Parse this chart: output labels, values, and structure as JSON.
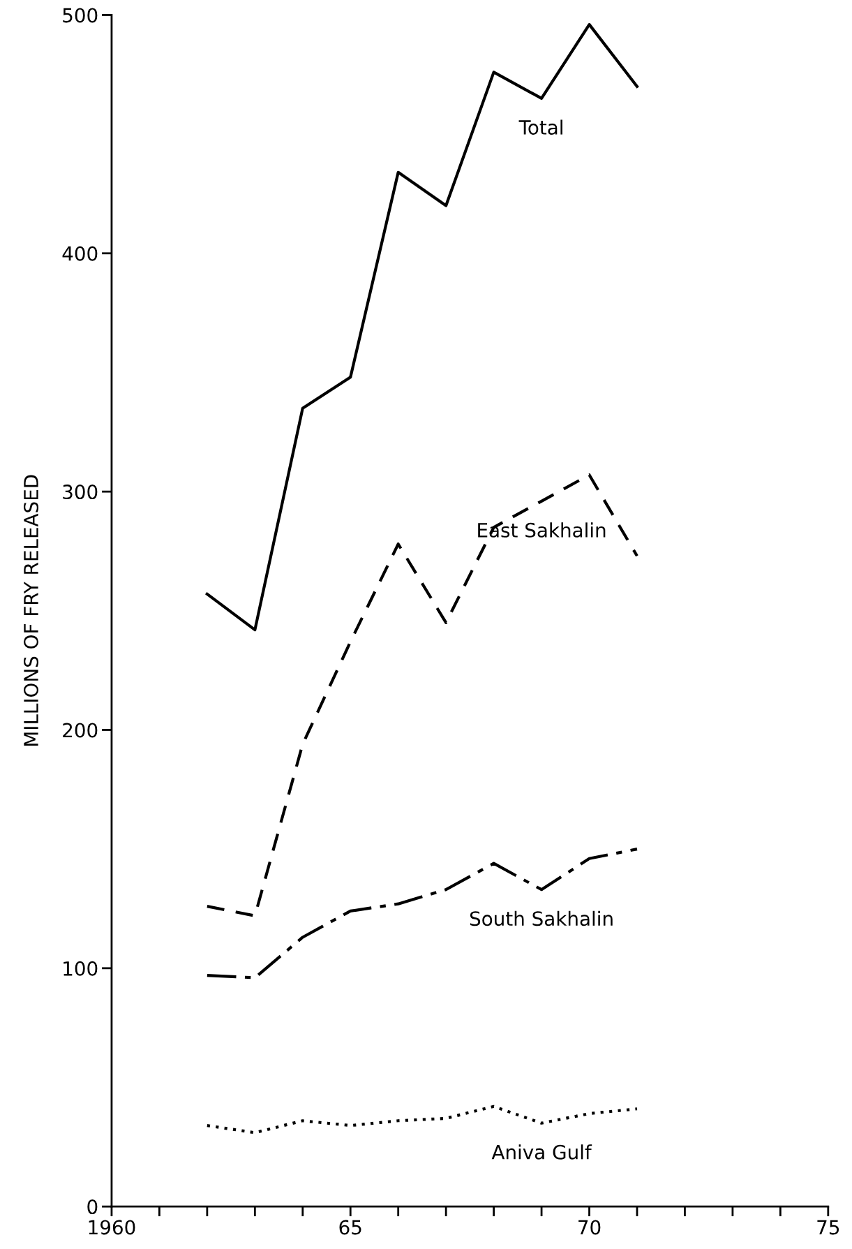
{
  "chart_data": {
    "type": "line",
    "ylabel": "MILLIONS OF FRY RELEASED",
    "x": [
      1962,
      1963,
      1964,
      1965,
      1966,
      1967,
      1968,
      1969,
      1970,
      1971
    ],
    "series": [
      {
        "name": "Total",
        "color": "#000000",
        "line_style": "solid",
        "values": [
          257,
          242,
          335,
          348,
          434,
          420,
          476,
          465,
          496,
          470
        ]
      },
      {
        "name": "East Sakhalin",
        "color": "#000000",
        "line_style": "dashed",
        "values": [
          126,
          122,
          194,
          237,
          278,
          245,
          285,
          296,
          307,
          273
        ]
      },
      {
        "name": "South Sakhalin",
        "color": "#000000",
        "line_style": "dashdot",
        "values": [
          97,
          96,
          113,
          124,
          127,
          133,
          144,
          133,
          146,
          150
        ]
      },
      {
        "name": "Aniva Gulf",
        "color": "#000000",
        "line_style": "dotted",
        "values": [
          34,
          31,
          36,
          34,
          36,
          37,
          42,
          35,
          39,
          41
        ]
      }
    ],
    "xlim": [
      1960,
      1975
    ],
    "xticks": [
      1960,
      {
        "value": 1961,
        "label": null
      },
      {
        "value": 1962,
        "label": null
      },
      {
        "value": 1963,
        "label": null
      },
      {
        "value": 1964,
        "label": null
      },
      {
        "value": 1965,
        "label": "65"
      },
      {
        "value": 1966,
        "label": null
      },
      {
        "value": 1967,
        "label": null
      },
      {
        "value": 1968,
        "label": null
      },
      {
        "value": 1969,
        "label": null
      },
      {
        "value": 1970,
        "label": "70"
      },
      {
        "value": 1971,
        "label": null
      },
      {
        "value": 1972,
        "label": null
      },
      {
        "value": 1973,
        "label": null
      },
      {
        "value": 1974,
        "label": null
      },
      {
        "value": 1975,
        "label": "75"
      }
    ],
    "ylim": [
      0,
      500
    ],
    "yticks": [
      0,
      100,
      200,
      300,
      400,
      500
    ],
    "grid": false,
    "legend": false,
    "marker": "none"
  }
}
